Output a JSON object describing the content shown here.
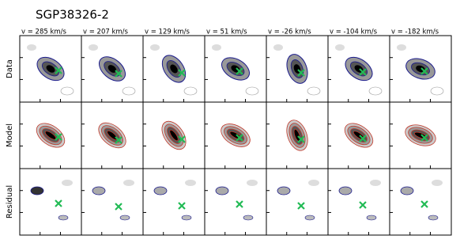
{
  "title": "SGP38326-2",
  "velocity_labels": [
    "v = 285 km/s",
    "v = 207 km/s",
    "v = 129 km/s",
    "v = 51 km/s",
    "v = -26 km/s",
    "v = -104 km/s",
    "v = -182 km/s"
  ],
  "row_labels": [
    "Data",
    "Model",
    "Residual"
  ]
}
